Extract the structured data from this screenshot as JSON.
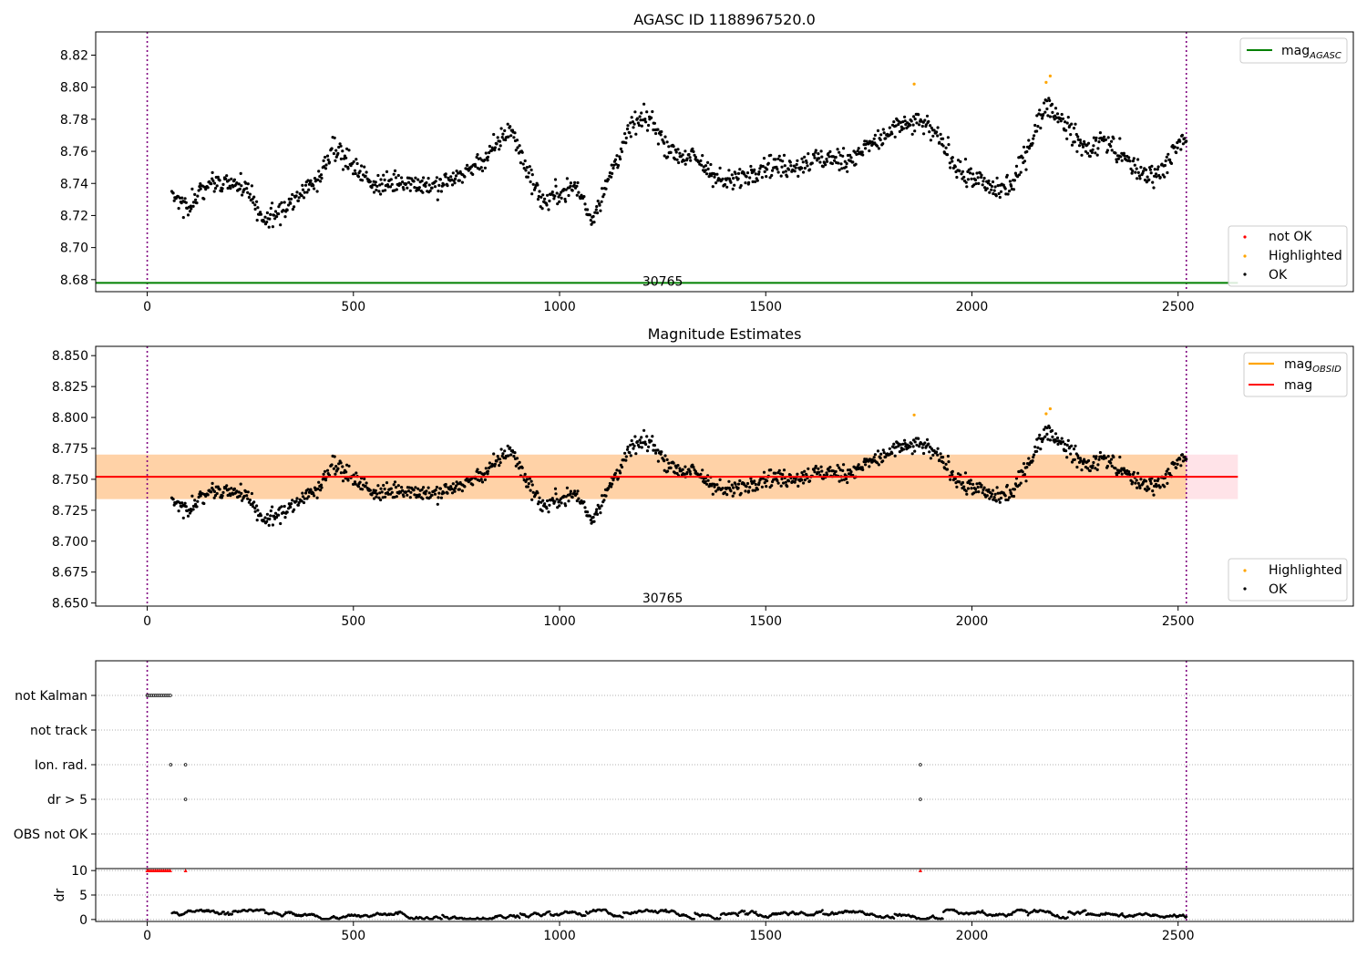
{
  "chart_data": [
    {
      "type": "scatter",
      "title": "AGASC ID 1188967520.0",
      "xlabel": "",
      "ylabel": "",
      "xlim": [
        -125,
        2925
      ],
      "ylim": [
        8.6725,
        8.8345
      ],
      "xticks": [
        0,
        500,
        1000,
        1500,
        2000,
        2500
      ],
      "yticks": [
        8.68,
        8.7,
        8.72,
        8.74,
        8.76,
        8.78,
        8.8,
        8.82
      ],
      "ytick_labels": [
        "8.68",
        "8.70",
        "8.72",
        "8.74",
        "8.76",
        "8.78",
        "8.80",
        "8.82"
      ],
      "vlines": [
        0,
        2520
      ],
      "hline": {
        "name": "mag",
        "name_sub": "AGASC",
        "y": 8.678,
        "x_range": [
          -125,
          2645
        ],
        "color": "#008000"
      },
      "annotation": {
        "text": "30765",
        "x": 1250,
        "y": 8.679
      },
      "legend_top": [
        {
          "label": "mag",
          "sub": "AGASC",
          "color": "#008000",
          "kind": "line"
        }
      ],
      "legend_bottom": [
        {
          "label": "not OK",
          "color": "#ff0000",
          "kind": "dot"
        },
        {
          "label": "Highlighted",
          "color": "#ffa500",
          "kind": "dot"
        },
        {
          "label": "OK",
          "color": "#000000",
          "kind": "dot"
        }
      ],
      "series": [
        {
          "name": "OK",
          "color": "#000000",
          "x_range": [
            60,
            2520
          ],
          "n_points": 1300,
          "trend_x": [
            60,
            100,
            150,
            200,
            250,
            280,
            320,
            380,
            420,
            450,
            500,
            560,
            620,
            700,
            780,
            830,
            880,
            910,
            960,
            1000,
            1040,
            1080,
            1130,
            1180,
            1220,
            1270,
            1330,
            1400,
            1430,
            1500,
            1560,
            1620,
            1700,
            1760,
            1820,
            1880,
            1920,
            1980,
            2020,
            2060,
            2100,
            2140,
            2180,
            2230,
            2280,
            2320,
            2370,
            2420,
            2460,
            2490,
            2520
          ],
          "trend_y": [
            8.735,
            8.725,
            8.742,
            8.74,
            8.735,
            8.715,
            8.722,
            8.735,
            8.745,
            8.765,
            8.75,
            8.738,
            8.742,
            8.738,
            8.748,
            8.758,
            8.775,
            8.755,
            8.728,
            8.735,
            8.738,
            8.718,
            8.75,
            8.778,
            8.78,
            8.76,
            8.755,
            8.74,
            8.742,
            8.752,
            8.75,
            8.755,
            8.755,
            8.765,
            8.775,
            8.778,
            8.768,
            8.745,
            8.742,
            8.735,
            8.74,
            8.765,
            8.79,
            8.775,
            8.76,
            8.768,
            8.755,
            8.745,
            8.748,
            8.76,
            8.768
          ],
          "noise": 0.007
        },
        {
          "name": "Highlighted",
          "color": "#ffa500",
          "x": [
            1860,
            2180,
            2190
          ],
          "y": [
            8.802,
            8.803,
            8.807
          ]
        }
      ]
    },
    {
      "type": "scatter",
      "title": "Magnitude Estimates",
      "xlabel": "",
      "ylabel": "",
      "xlim": [
        -125,
        2925
      ],
      "ylim": [
        8.6475,
        8.8575
      ],
      "xticks": [
        0,
        500,
        1000,
        1500,
        2000,
        2500
      ],
      "yticks": [
        8.65,
        8.675,
        8.7,
        8.725,
        8.75,
        8.775,
        8.8,
        8.825,
        8.85
      ],
      "ytick_labels": [
        "8.650",
        "8.675",
        "8.700",
        "8.725",
        "8.750",
        "8.775",
        "8.800",
        "8.825",
        "8.850"
      ],
      "vlines": [
        0,
        2520
      ],
      "mag_line": {
        "name": "mag",
        "y": 8.752,
        "x_range": [
          -125,
          2645
        ],
        "color": "#ff0000"
      },
      "bands": [
        {
          "color": "#ffc0cb",
          "opacity": 0.45,
          "y0": 8.734,
          "y1": 8.77,
          "x_range": [
            -125,
            2645
          ]
        },
        {
          "color": "#ffa500",
          "opacity": 0.28,
          "y0": 8.734,
          "y1": 8.77,
          "x_range": [
            -125,
            2520
          ]
        }
      ],
      "annotation": {
        "text": "30765",
        "x": 1250,
        "y": 8.654
      },
      "legend_top": [
        {
          "label": "mag",
          "sub": "OBSID",
          "color": "#ffa500",
          "kind": "line"
        },
        {
          "label": "mag",
          "sub": "",
          "color": "#ff0000",
          "kind": "line"
        }
      ],
      "legend_bottom": [
        {
          "label": "Highlighted",
          "color": "#ffa500",
          "kind": "dot"
        },
        {
          "label": "OK",
          "color": "#000000",
          "kind": "dot"
        }
      ],
      "series": [
        {
          "name": "OK",
          "color": "#000000",
          "same_as_panel": 0
        },
        {
          "name": "Highlighted",
          "color": "#ffa500",
          "x": [
            1860,
            2180,
            2190
          ],
          "y": [
            8.802,
            8.803,
            8.807
          ]
        }
      ]
    },
    {
      "type": "scatter",
      "title": "",
      "xlabel": "",
      "ylabel": "",
      "xlim": [
        -125,
        2925
      ],
      "categories": [
        "not Kalman",
        "not track",
        "Ion. rad.",
        "dr > 5",
        "OBS not OK"
      ],
      "vlines": [
        0,
        2520
      ],
      "flags": [
        {
          "category": "not Kalman",
          "x_range": [
            0,
            58
          ],
          "step": 4
        },
        {
          "category": "Ion. rad.",
          "x": [
            57,
            93,
            1875
          ]
        },
        {
          "category": "dr > 5",
          "x": [
            93,
            1875
          ]
        }
      ]
    },
    {
      "type": "scatter",
      "title": "",
      "xlabel": "",
      "ylabel": "dr",
      "xlim": [
        -125,
        2925
      ],
      "ylim": [
        -0.4,
        10.4
      ],
      "yticks": [
        0,
        5,
        10
      ],
      "ytick_labels": [
        "0",
        "5",
        "10"
      ],
      "xticks": [
        0,
        500,
        1000,
        1500,
        2000,
        2500
      ],
      "vlines": [
        0,
        2520
      ],
      "clipped": {
        "color": "#ff0000",
        "y": 10,
        "x_range": [
          0,
          58
        ],
        "step": 4,
        "extra_x": [
          93,
          1875
        ]
      },
      "dr_series": {
        "color": "#000000",
        "x_range": [
          60,
          2520
        ],
        "typical": 1.2,
        "spread": 0.8
      }
    }
  ]
}
